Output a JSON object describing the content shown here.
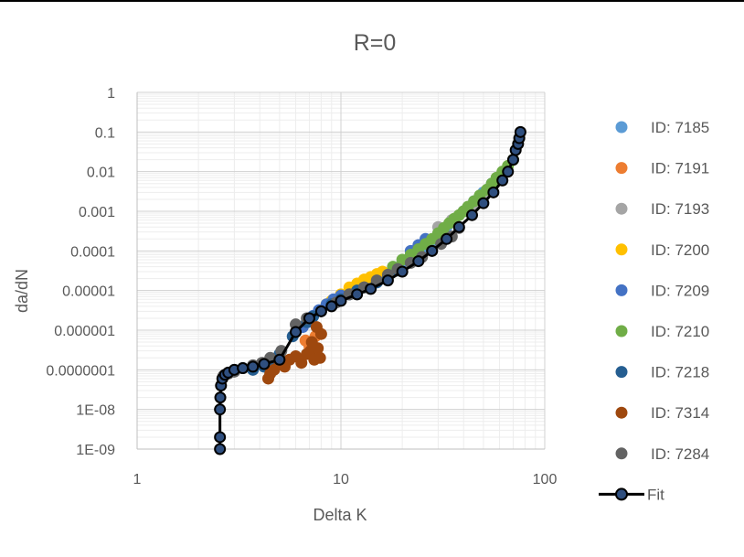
{
  "chart_data": {
    "type": "scatter",
    "title": "R=0",
    "xlabel": "Delta K",
    "ylabel": "da/dN",
    "x_scale": "log",
    "y_scale": "log",
    "xlim": [
      1,
      100
    ],
    "ylim": [
      1e-09,
      1
    ],
    "x_tick_values": [
      1,
      10,
      100
    ],
    "x_tick_labels": [
      "1",
      "10",
      "100"
    ],
    "y_tick_values": [
      1,
      0.1,
      0.01,
      0.001,
      0.0001,
      1e-05,
      1e-06,
      1e-07,
      1e-08,
      1e-09
    ],
    "y_tick_labels": [
      "1",
      "0.1",
      "0.01",
      "0.001",
      "0.0001",
      "0.00001",
      "0.000001",
      "0.0000001",
      "1E-08",
      "1E-09"
    ],
    "grid": "major and minor",
    "legend_position": "right",
    "series": [
      {
        "name": "ID: 7185",
        "color": "#5B9BD5",
        "marker": "circle",
        "x": [
          20,
          22,
          25,
          28,
          30,
          33,
          36,
          40,
          45,
          50,
          55
        ],
        "y": [
          5e-05,
          7e-05,
          0.0001,
          0.00015,
          0.00025,
          0.0004,
          0.0006,
          0.001,
          0.0018,
          0.003,
          0.005
        ]
      },
      {
        "name": "ID: 7191",
        "color": "#ED7D31",
        "marker": "circle",
        "x": [
          6.7,
          7.0,
          7.5
        ],
        "y": [
          5.5e-07,
          4e-07,
          7e-07
        ]
      },
      {
        "name": "ID: 7193",
        "color": "#A5A5A5",
        "marker": "circle",
        "x": [
          30,
          35,
          40,
          45,
          50,
          55
        ],
        "y": [
          0.0004,
          0.0006,
          0.001,
          0.0015,
          0.0025,
          0.004
        ]
      },
      {
        "name": "ID: 7200",
        "color": "#FFC000",
        "marker": "circle",
        "x": [
          8.5,
          9.0,
          10,
          11,
          12,
          13,
          14,
          15,
          16
        ],
        "y": [
          4.5e-06,
          5.5e-06,
          8e-06,
          1.2e-05,
          1.5e-05,
          1.9e-05,
          2.2e-05,
          2.6e-05,
          3e-05
        ]
      },
      {
        "name": "ID: 7209",
        "color": "#4472C4",
        "marker": "circle",
        "x": [
          6.5,
          6.9,
          7.3,
          7.8,
          8.5,
          9.2,
          10,
          22,
          24,
          26
        ],
        "y": [
          1.2e-06,
          1.6e-06,
          2.3e-06,
          3.2e-06,
          4.5e-06,
          6e-06,
          7.5e-06,
          0.0001,
          0.00014,
          0.0002
        ]
      },
      {
        "name": "ID: 7210",
        "color": "#70AD47",
        "marker": "circle",
        "x": [
          18,
          20,
          22,
          24,
          26,
          28,
          30,
          32,
          34,
          36,
          38,
          40,
          42,
          45,
          48,
          52,
          55,
          58,
          62,
          66,
          70
        ],
        "y": [
          4e-05,
          6e-05,
          8e-05,
          0.00011,
          0.00015,
          0.0002,
          0.00028,
          0.00038,
          0.0005,
          0.00065,
          0.0008,
          0.001,
          0.0013,
          0.0018,
          0.0025,
          0.0035,
          0.005,
          0.007,
          0.01,
          0.014,
          0.02
        ]
      },
      {
        "name": "ID: 7218",
        "color": "#255E91",
        "marker": "circle",
        "x": [
          3.0,
          3.3,
          3.7,
          4.2,
          4.6,
          5.0,
          5.8,
          6.8,
          7.3,
          8.0,
          9.0,
          10,
          11,
          12,
          13,
          15,
          17,
          19
        ],
        "y": [
          1e-07,
          1.1e-07,
          1e-07,
          1.2e-07,
          1.8e-07,
          2.5e-07,
          7e-07,
          1.6e-06,
          2.2e-06,
          3e-06,
          4.5e-06,
          6e-06,
          8e-06,
          1e-05,
          1.2e-05,
          1.6e-05,
          2.2e-05,
          3.2e-05
        ]
      },
      {
        "name": "ID: 7314",
        "color": "#9E480E",
        "marker": "circle",
        "x": [
          4.4,
          4.5,
          4.7,
          5.0,
          5.3,
          5.6,
          6.0,
          6.4,
          6.8,
          7.1,
          7.4,
          7.7,
          7.9,
          8.0,
          7.6,
          7.2
        ],
        "y": [
          6e-08,
          8e-08,
          1e-07,
          1.5e-07,
          1.2e-07,
          1.8e-07,
          2.2e-07,
          1.5e-07,
          2.5e-07,
          3e-07,
          1.8e-07,
          3.5e-07,
          2e-07,
          8e-07,
          1.2e-06,
          5e-07
        ]
      },
      {
        "name": "ID: 7284",
        "color": "#636363",
        "marker": "circle",
        "x": [
          2.65,
          2.8,
          3.0,
          3.3,
          3.7,
          4.1,
          4.5,
          5.1,
          6.0,
          6.8,
          8.0,
          9.5,
          11,
          13,
          15,
          17,
          19,
          22,
          25,
          28,
          31,
          35,
          38
        ],
        "y": [
          7e-08,
          8e-08,
          9e-08,
          1.1e-07,
          1.3e-07,
          1.5e-07,
          2e-07,
          3e-07,
          1.4e-06,
          2e-06,
          3e-06,
          5e-06,
          8e-06,
          1.2e-05,
          1.8e-05,
          2.5e-05,
          3.5e-05,
          5e-05,
          7e-05,
          0.0001,
          0.00015,
          0.00023,
          0.00038
        ]
      },
      {
        "name": "Fit",
        "color": "#000000",
        "marker_fill": "#2F4F7F",
        "marker": "circle-line",
        "x": [
          2.55,
          2.55,
          2.55,
          2.56,
          2.58,
          2.62,
          2.7,
          2.8,
          3.0,
          3.3,
          3.7,
          4.2,
          5.0,
          6.0,
          7.0,
          8.0,
          9.0,
          10,
          12,
          14,
          17,
          20,
          24,
          28,
          33,
          38,
          44,
          50,
          56,
          62,
          66,
          70,
          72,
          74,
          75,
          76
        ],
        "y": [
          1e-09,
          2e-09,
          1e-08,
          2e-08,
          4e-08,
          6e-08,
          7.5e-08,
          8.5e-08,
          1e-07,
          1.1e-07,
          1.2e-07,
          1.4e-07,
          1.8e-07,
          9e-07,
          2e-06,
          3e-06,
          4e-06,
          5.5e-06,
          8e-06,
          1.1e-05,
          1.8e-05,
          3e-05,
          5.5e-05,
          0.0001,
          0.0002,
          0.0004,
          0.0008,
          0.0016,
          0.003,
          0.006,
          0.01,
          0.02,
          0.035,
          0.05,
          0.07,
          0.1
        ]
      }
    ]
  }
}
